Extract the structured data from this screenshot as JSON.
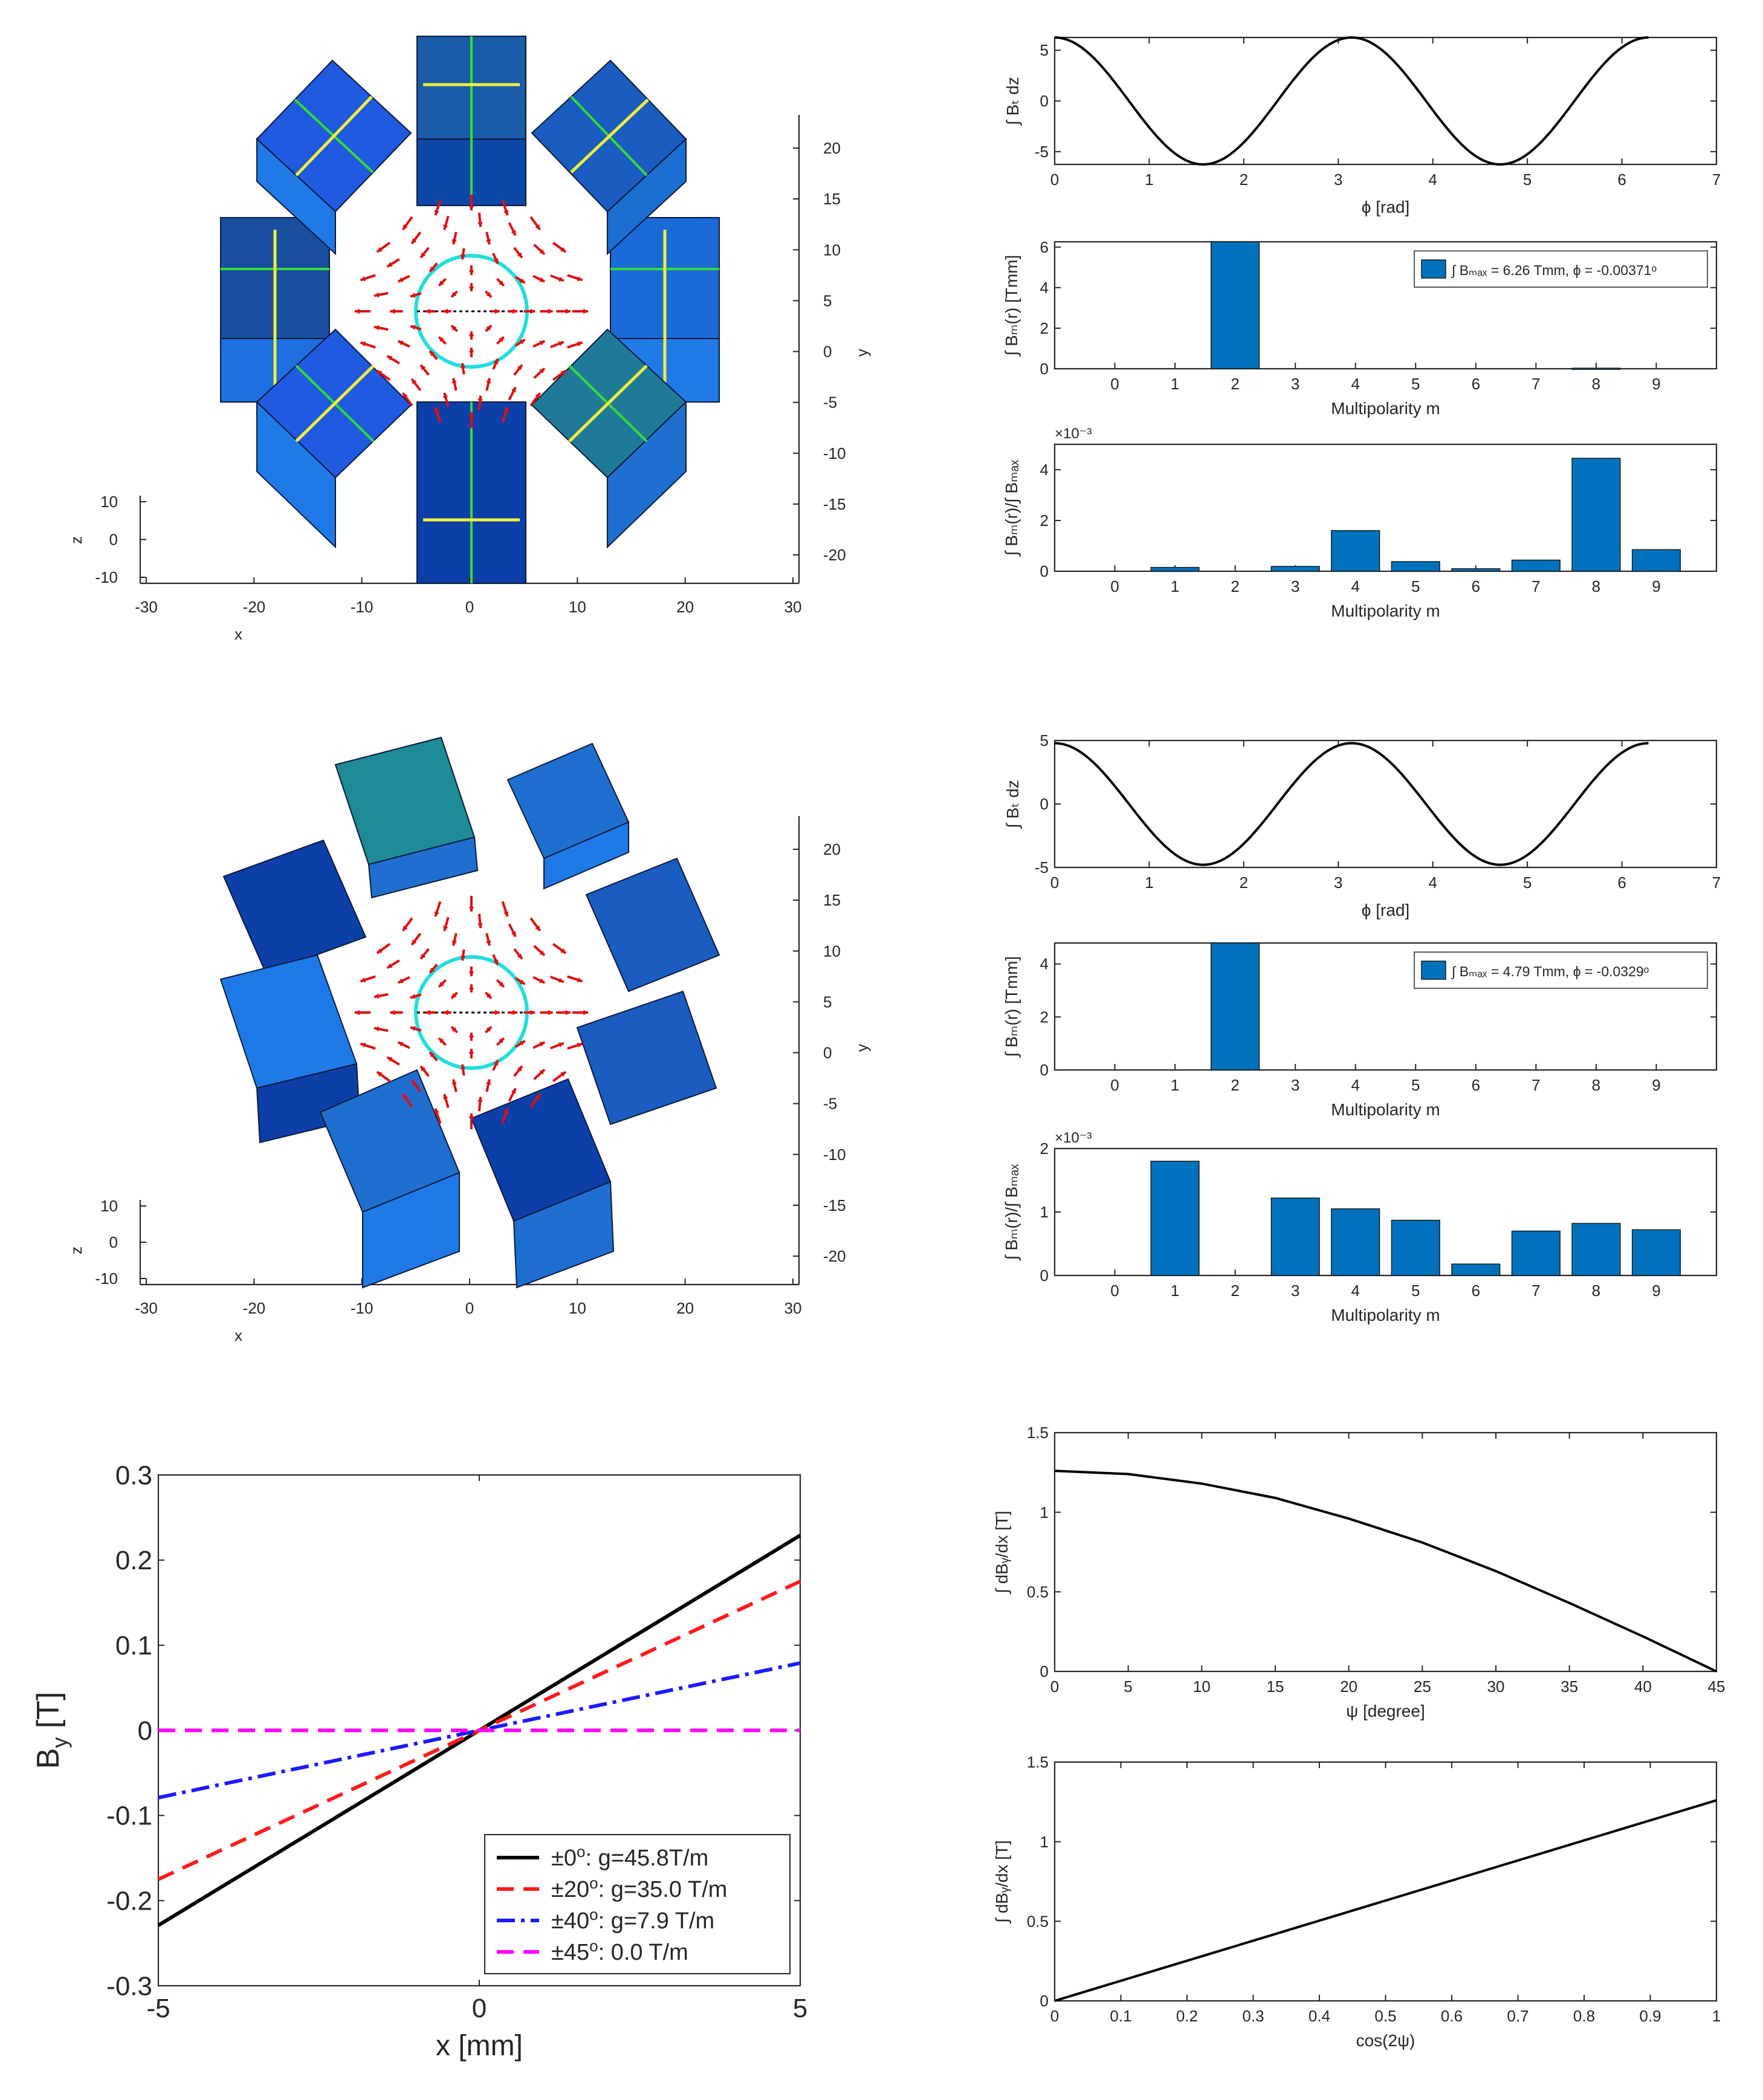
{
  "chart_data": [
    {
      "id": "magnet-top",
      "type": "diagram",
      "xlabel": "x",
      "ylabel": "y",
      "zlabel": "z",
      "x_ticks": [
        "-30",
        "-20",
        "-10",
        "0",
        "10",
        "20",
        "30"
      ],
      "y_ticks": [
        "20",
        "15",
        "10",
        "5",
        "0",
        "-5",
        "-10",
        "-15",
        "-20"
      ],
      "z_ticks": [
        "10",
        "0",
        "-10"
      ]
    },
    {
      "id": "field-top",
      "type": "line",
      "xlabel": "ϕ [rad]",
      "ylabel": "∫ Bₜ dz",
      "xlim": [
        0,
        7
      ],
      "ylim": [
        -6.26,
        6.26
      ],
      "x_ticks": [
        "0",
        "1",
        "2",
        "3",
        "4",
        "5",
        "6",
        "7"
      ],
      "y_ticks": [
        "5",
        "0",
        "-5"
      ],
      "amplitude": 6.26,
      "function": "amplitude*cos(2*phi)",
      "x_max": 6.28
    },
    {
      "id": "multipole-top",
      "type": "bar",
      "xlabel": "Multipolarity m",
      "ylabel": "∫ Bₘ(r) [Tmm]",
      "categories": [
        "0",
        "1",
        "2",
        "3",
        "4",
        "5",
        "6",
        "7",
        "8",
        "9"
      ],
      "values": [
        0,
        0,
        6.26,
        0,
        0,
        0,
        0,
        0,
        0.028,
        0
      ],
      "ylim": [
        0,
        6.26
      ],
      "y_ticks": [
        "6",
        "4",
        "2",
        "0"
      ],
      "legend": "∫ Bₘₐₓ = 6.26 Tmm,  ϕ = -0.00371ᵒ"
    },
    {
      "id": "relative-top",
      "type": "bar",
      "xlabel": "Multipolarity m",
      "ylabel": "∫ Bₘ(r)/∫ Bₘₐₓ",
      "categories": [
        "0",
        "1",
        "2",
        "3",
        "4",
        "5",
        "6",
        "7",
        "8",
        "9"
      ],
      "values": [
        0,
        0.00015,
        0,
        0.00019,
        0.0016,
        0.00038,
        0.0001,
        0.00044,
        0.00445,
        0.00085
      ],
      "ylim": [
        0,
        0.005
      ],
      "exponent": "×10⁻³",
      "y_ticks": [
        "4",
        "2",
        "0"
      ]
    },
    {
      "id": "magnet-mid",
      "type": "diagram",
      "xlabel": "x",
      "ylabel": "y",
      "zlabel": "z",
      "x_ticks": [
        "-30",
        "-20",
        "-10",
        "0",
        "10",
        "20",
        "30"
      ],
      "y_ticks": [
        "20",
        "15",
        "10",
        "5",
        "0",
        "-5",
        "-10",
        "-15",
        "-20"
      ],
      "z_ticks": [
        "10",
        "0",
        "-10"
      ]
    },
    {
      "id": "field-mid",
      "type": "line",
      "xlabel": "ϕ [rad]",
      "ylabel": "∫ Bₜ dz",
      "xlim": [
        0,
        7
      ],
      "ylim": [
        -5,
        5
      ],
      "x_ticks": [
        "0",
        "1",
        "2",
        "3",
        "4",
        "5",
        "6",
        "7"
      ],
      "y_ticks": [
        "5",
        "0",
        "-5"
      ],
      "amplitude": 4.79,
      "function": "amplitude*cos(2*phi)",
      "x_max": 6.28
    },
    {
      "id": "multipole-mid",
      "type": "bar",
      "xlabel": "Multipolarity m",
      "ylabel": "∫ Bₘ(r) [Tmm]",
      "categories": [
        "0",
        "1",
        "2",
        "3",
        "4",
        "5",
        "6",
        "7",
        "8",
        "9"
      ],
      "values": [
        0,
        0,
        4.79,
        0,
        0,
        0,
        0,
        0,
        0,
        0
      ],
      "ylim": [
        0,
        4.79
      ],
      "y_ticks": [
        "4",
        "2",
        "0"
      ],
      "legend": "∫ Bₘₐₓ = 4.79 Tmm,  ϕ = -0.0329ᵒ"
    },
    {
      "id": "relative-mid",
      "type": "bar",
      "xlabel": "Multipolarity m",
      "ylabel": "∫ Bₘ(r)/∫ Bₘₐₓ",
      "categories": [
        "0",
        "1",
        "2",
        "3",
        "4",
        "5",
        "6",
        "7",
        "8",
        "9"
      ],
      "values": [
        0,
        0.0018,
        0,
        0.00122,
        0.00105,
        0.00087,
        0.00018,
        0.0007,
        0.00082,
        0.00072
      ],
      "ylim": [
        0,
        0.002
      ],
      "exponent": "×10⁻³",
      "y_ticks": [
        "2",
        "1",
        "0"
      ]
    },
    {
      "id": "gradient",
      "type": "line",
      "xlabel": "x [mm]",
      "ylabel": "B",
      "ylabel_sub": "y",
      "ylabel_unit": " [T]",
      "xlim": [
        -5,
        5
      ],
      "ylim": [
        -0.3,
        0.3
      ],
      "x_ticks": [
        "-5",
        "0",
        "5"
      ],
      "y_ticks": [
        "0.3",
        "0.2",
        "0.1",
        "0",
        "-0.1",
        "-0.2",
        "-0.3"
      ],
      "series": [
        {
          "name": "±0ᵒ: g=45.8T/m",
          "prefix": "±0",
          "suffix": ": g=45.8T/m",
          "color": "#000000",
          "dash": "",
          "x": [
            -5,
            5
          ],
          "y": [
            -0.229,
            0.229
          ]
        },
        {
          "name": "±20ᵒ: g=35.0 T/m",
          "prefix": "±20",
          "suffix": ": g=35.0 T/m",
          "color": "#ff1a1a",
          "dash": "28,16",
          "x": [
            -5,
            5
          ],
          "y": [
            -0.175,
            0.175
          ]
        },
        {
          "name": "±40ᵒ: g=7.9 T/m",
          "prefix": "±40",
          "suffix": ": g=7.9 T/m",
          "color": "#1a1aff",
          "dash": "30,10,6,10",
          "x": [
            -5,
            5
          ],
          "y": [
            -0.079,
            0.079
          ]
        },
        {
          "name": "±45ᵒ: 0.0 T/m",
          "prefix": "±45",
          "suffix": ": 0.0 T/m",
          "color": "#ff00ff",
          "dash": "28,16",
          "x": [
            -5,
            5
          ],
          "y": [
            0,
            0
          ]
        }
      ]
    },
    {
      "id": "grad-vs-psi",
      "type": "line",
      "xlabel": "ψ [degree]",
      "ylabel": "∫ dBᵧ/dx [T]",
      "xlim": [
        0,
        45
      ],
      "ylim": [
        0,
        1.5
      ],
      "x_ticks": [
        "0",
        "5",
        "10",
        "15",
        "20",
        "25",
        "30",
        "35",
        "40",
        "45"
      ],
      "y_ticks": [
        "1.5",
        "1",
        "0.5",
        "0"
      ],
      "x": [
        0,
        5,
        10,
        15,
        20,
        25,
        30,
        35,
        40,
        45
      ],
      "y": [
        1.26,
        1.24,
        1.18,
        1.09,
        0.96,
        0.81,
        0.63,
        0.43,
        0.22,
        0
      ]
    },
    {
      "id": "grad-vs-cos",
      "type": "line",
      "xlabel": "cos(2ψ)",
      "ylabel": "∫ dBᵧ/dx [T]",
      "xlim": [
        0,
        1
      ],
      "ylim": [
        0,
        1.5
      ],
      "x_ticks": [
        "0",
        "0.1",
        "0.2",
        "0.3",
        "0.4",
        "0.5",
        "0.6",
        "0.7",
        "0.8",
        "0.9",
        "1"
      ],
      "y_ticks": [
        "1.5",
        "1",
        "0.5",
        "0"
      ],
      "x": [
        0,
        1
      ],
      "y": [
        0,
        1.26
      ]
    }
  ],
  "colors": {
    "bar": "#0072BD",
    "curve": "#000000",
    "magnet_a": "#1f5fd6",
    "magnet_b": "#0d3fa8",
    "magnet_c": "#2a8ab8",
    "field_arrow": "#e01010",
    "green_line": "#33dd33",
    "yellow_arrow": "#f0f03c",
    "cyan_circle": "#22dddd"
  }
}
